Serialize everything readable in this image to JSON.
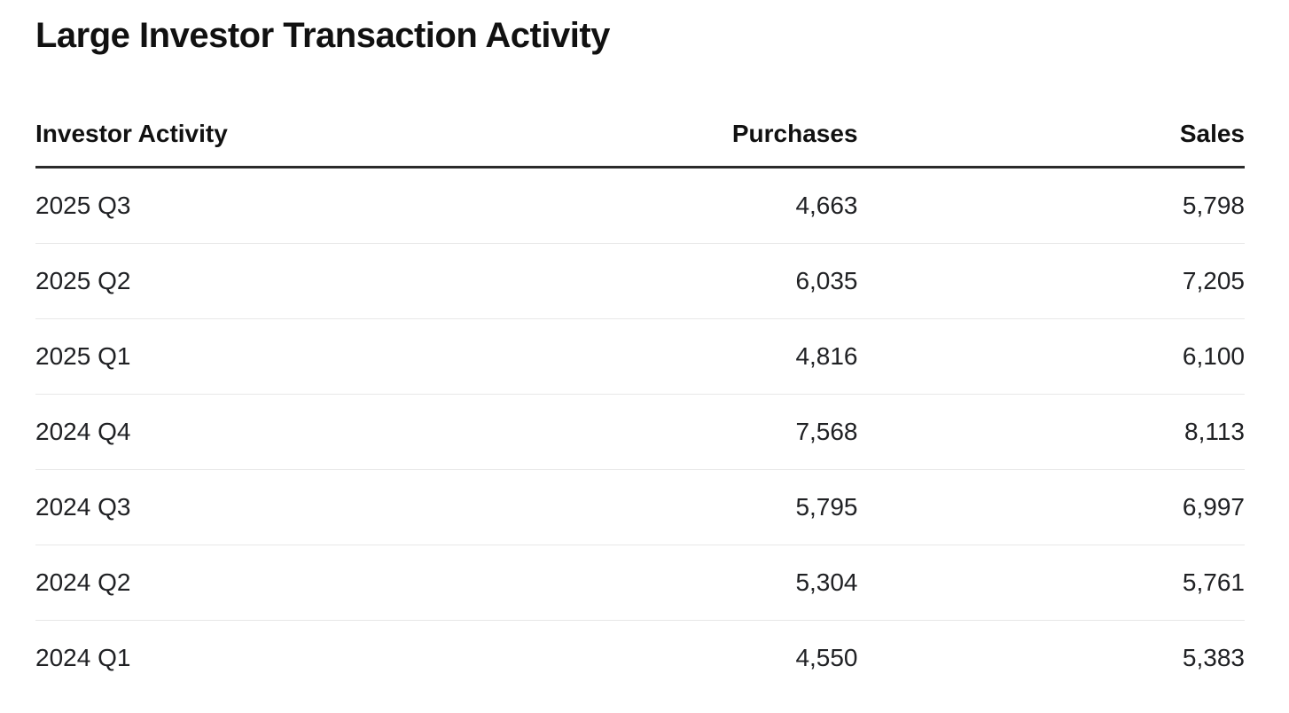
{
  "page": {
    "title": "Large Investor Transaction Activity"
  },
  "table": {
    "columns": [
      {
        "label": "Investor Activity",
        "align": "left"
      },
      {
        "label": "Purchases",
        "align": "right"
      },
      {
        "label": "Sales",
        "align": "right"
      }
    ],
    "rows": [
      {
        "period": "2025 Q3",
        "purchases": "4,663",
        "sales": "5,798"
      },
      {
        "period": "2025 Q2",
        "purchases": "6,035",
        "sales": "7,205"
      },
      {
        "period": "2025 Q1",
        "purchases": "4,816",
        "sales": "6,100"
      },
      {
        "period": "2024 Q4",
        "purchases": "7,568",
        "sales": "8,113"
      },
      {
        "period": "2024 Q3",
        "purchases": "5,795",
        "sales": "6,997"
      },
      {
        "period": "2024 Q2",
        "purchases": "5,304",
        "sales": "5,761"
      },
      {
        "period": "2024 Q1",
        "purchases": "4,550",
        "sales": "5,383"
      }
    ]
  },
  "colors": {
    "text": "#202124",
    "title": "#111111",
    "header_rule": "#2b2b2b",
    "row_divider": "#e8e8e8",
    "background": "#ffffff"
  },
  "chart_data": {
    "type": "table",
    "title": "Large Investor Transaction Activity",
    "columns": [
      "Investor Activity",
      "Purchases",
      "Sales"
    ],
    "rows": [
      [
        "2025 Q3",
        4663,
        5798
      ],
      [
        "2025 Q2",
        6035,
        7205
      ],
      [
        "2025 Q1",
        4816,
        6100
      ],
      [
        "2024 Q4",
        7568,
        8113
      ],
      [
        "2024 Q3",
        5795,
        6997
      ],
      [
        "2024 Q2",
        5304,
        5761
      ],
      [
        "2024 Q1",
        4550,
        5383
      ]
    ]
  }
}
